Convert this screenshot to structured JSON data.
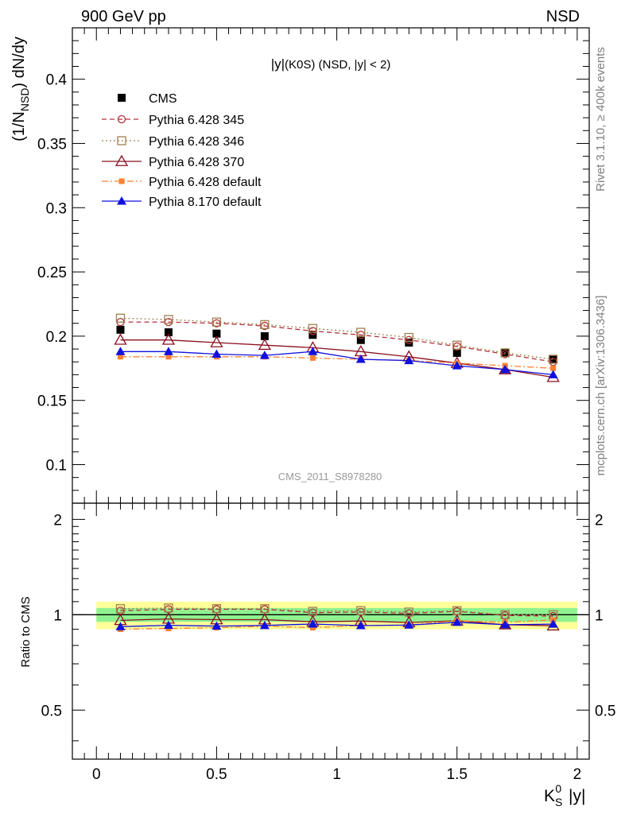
{
  "header": {
    "left": "900 GeV pp",
    "right": "NSD",
    "rivet": "Rivet 3.1.10, ≥ 400k events",
    "mcplots": "mcplots.cern.ch [arXiv:1306.3436]",
    "watermark": "CMS_2011_S8978280"
  },
  "chart_data": [
    {
      "type": "scatter",
      "title": "|y|(K0S) (NSD, |y| < 2)",
      "ylabel": "(1/N_NSD) dN/dy",
      "xlabel": "K_S^0 |y|",
      "xlim": [
        -0.1,
        2.05
      ],
      "ylim": [
        0.07,
        0.44
      ],
      "grid": false,
      "legend_position": "top-left",
      "x": [
        0.1,
        0.3,
        0.5,
        0.7,
        0.9,
        1.1,
        1.3,
        1.5,
        1.7,
        1.9
      ],
      "yticks": [
        0.1,
        0.15,
        0.2,
        0.25,
        0.3,
        0.35,
        0.4
      ],
      "series": [
        {
          "name": "CMS",
          "color": "#000000",
          "marker": "square-filled",
          "line": "none",
          "values": [
            0.205,
            0.203,
            0.202,
            0.2,
            0.201,
            0.197,
            0.195,
            0.187,
            0.187,
            0.182
          ]
        },
        {
          "name": "Pythia 6.428 345",
          "color": "#b0303c",
          "marker": "circle-open",
          "line": "dashed",
          "values": [
            0.211,
            0.211,
            0.21,
            0.208,
            0.204,
            0.201,
            0.197,
            0.192,
            0.186,
            0.18
          ]
        },
        {
          "name": "Pythia 6.428 346",
          "color": "#a08050",
          "marker": "square-open",
          "line": "dotted",
          "values": [
            0.214,
            0.213,
            0.211,
            0.209,
            0.206,
            0.203,
            0.199,
            0.193,
            0.187,
            0.182
          ]
        },
        {
          "name": "Pythia 6.428 370",
          "color": "#8b1020",
          "marker": "triangle-open",
          "line": "solid",
          "values": [
            0.197,
            0.197,
            0.195,
            0.193,
            0.191,
            0.188,
            0.184,
            0.179,
            0.174,
            0.168
          ]
        },
        {
          "name": "Pythia 6.428 default",
          "color": "#ff8030",
          "marker": "square-filled-small",
          "line": "dashdot",
          "values": [
            0.184,
            0.184,
            0.184,
            0.184,
            0.183,
            0.182,
            0.181,
            0.179,
            0.177,
            0.175
          ]
        },
        {
          "name": "Pythia 8.170 default",
          "color": "#1010e0",
          "marker": "triangle-filled",
          "line": "solid",
          "values": [
            0.188,
            0.188,
            0.186,
            0.185,
            0.188,
            0.182,
            0.181,
            0.177,
            0.174,
            0.17
          ]
        }
      ]
    },
    {
      "type": "scatter",
      "ylabel": "Ratio to CMS",
      "xlabel": "K_S^0 |y|",
      "xlim": [
        -0.1,
        2.05
      ],
      "ylim": [
        0.35,
        2.25
      ],
      "ytick_labels": [
        "0.5",
        "1",
        "2"
      ],
      "xtick_labels": [
        "0",
        "0.5",
        "1",
        "1.5",
        "2"
      ],
      "band_outer": [
        0.9,
        1.1
      ],
      "band_inner": [
        0.95,
        1.05
      ],
      "x": [
        0.1,
        0.3,
        0.5,
        0.7,
        0.9,
        1.1,
        1.3,
        1.5,
        1.7,
        1.9
      ],
      "series": [
        {
          "name": "Pythia 6.428 345",
          "values": [
            1.03,
            1.04,
            1.04,
            1.04,
            1.015,
            1.02,
            1.01,
            1.025,
            0.995,
            0.99
          ]
        },
        {
          "name": "Pythia 6.428 346",
          "values": [
            1.045,
            1.05,
            1.045,
            1.045,
            1.025,
            1.03,
            1.02,
            1.03,
            1.0,
            1.0
          ]
        },
        {
          "name": "Pythia 6.428 370",
          "values": [
            0.96,
            0.97,
            0.965,
            0.965,
            0.95,
            0.955,
            0.945,
            0.957,
            0.93,
            0.923
          ]
        },
        {
          "name": "Pythia 6.428 default",
          "values": [
            0.9,
            0.905,
            0.91,
            0.92,
            0.91,
            0.925,
            0.928,
            0.957,
            0.947,
            0.962
          ]
        },
        {
          "name": "Pythia 8.170 default",
          "values": [
            0.917,
            0.926,
            0.921,
            0.925,
            0.935,
            0.924,
            0.928,
            0.946,
            0.93,
            0.934
          ]
        }
      ]
    }
  ]
}
